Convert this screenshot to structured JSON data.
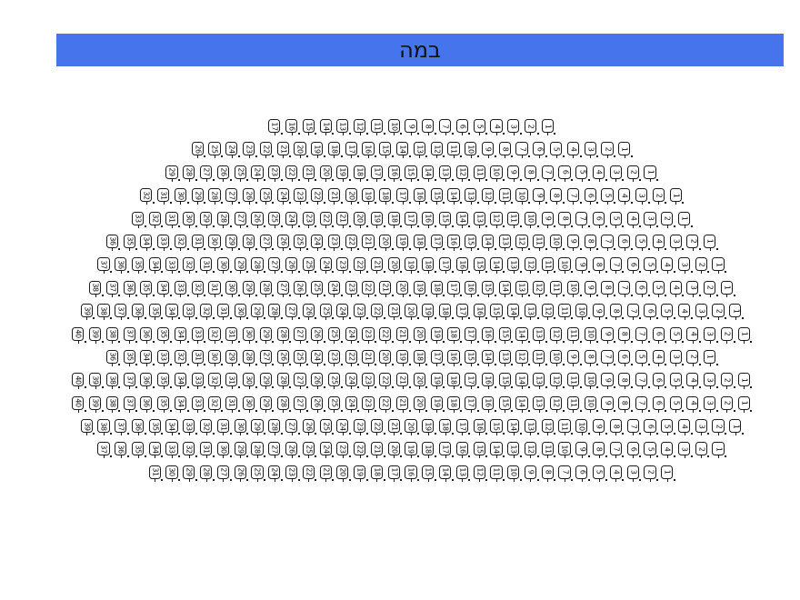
{
  "stage": {
    "label": "במה",
    "fill_color": "#4574EC",
    "text_color": "#111111"
  },
  "seating": {
    "rows_count": 16,
    "total_seats": 550,
    "seat_outline_color": "#1c1c1c",
    "seat_number_color": "#111111",
    "rows": [
      {
        "row": 1,
        "seat_count": 17,
        "left_seat": 17,
        "right_seat": 1
      },
      {
        "row": 2,
        "seat_count": 26,
        "left_seat": 26,
        "right_seat": 1
      },
      {
        "row": 3,
        "seat_count": 29,
        "left_seat": 29,
        "right_seat": 1
      },
      {
        "row": 4,
        "seat_count": 32,
        "left_seat": 32,
        "right_seat": 1
      },
      {
        "row": 5,
        "seat_count": 33,
        "left_seat": 33,
        "right_seat": 1
      },
      {
        "row": 6,
        "seat_count": 36,
        "left_seat": 36,
        "right_seat": 1
      },
      {
        "row": 7,
        "seat_count": 37,
        "left_seat": 37,
        "right_seat": 1
      },
      {
        "row": 8,
        "seat_count": 38,
        "left_seat": 38,
        "right_seat": 1
      },
      {
        "row": 9,
        "seat_count": 39,
        "left_seat": 39,
        "right_seat": 1
      },
      {
        "row": 10,
        "seat_count": 40,
        "left_seat": 40,
        "right_seat": 1
      },
      {
        "row": 11,
        "seat_count": 36,
        "left_seat": 36,
        "right_seat": 1
      },
      {
        "row": 12,
        "seat_count": 40,
        "left_seat": 40,
        "right_seat": 1
      },
      {
        "row": 13,
        "seat_count": 40,
        "left_seat": 40,
        "right_seat": 1
      },
      {
        "row": 14,
        "seat_count": 39,
        "left_seat": 39,
        "right_seat": 1
      },
      {
        "row": 15,
        "seat_count": 37,
        "left_seat": 37,
        "right_seat": 1
      },
      {
        "row": 16,
        "seat_count": 31,
        "left_seat": 31,
        "right_seat": 1
      }
    ]
  }
}
